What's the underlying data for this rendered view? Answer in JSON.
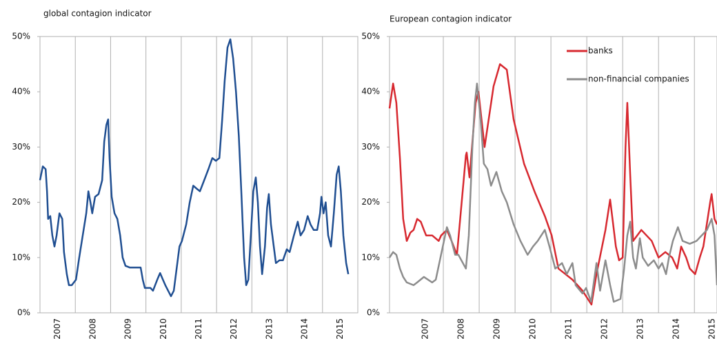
{
  "chart_data": [
    {
      "type": "line",
      "title": "global contagion indicator",
      "xlim": [
        2007,
        2016
      ],
      "xticks": [
        2007,
        2008,
        2009,
        2010,
        2011,
        2012,
        2013,
        2014,
        2015
      ],
      "ylim": [
        0,
        50
      ],
      "yticks": [
        {
          "value": 0,
          "label": "0%"
        },
        {
          "value": 10,
          "label": "10%"
        },
        {
          "value": 20,
          "label": "20%"
        },
        {
          "value": 30,
          "label": "30%"
        },
        {
          "value": 40,
          "label": "40%"
        },
        {
          "value": 50,
          "label": "50%"
        }
      ],
      "grid": true,
      "series": [
        {
          "color": "#1f4e91",
          "x": [
            2007.0,
            2007.08,
            2007.16,
            2007.2,
            2007.23,
            2007.29,
            2007.35,
            2007.41,
            2007.47,
            2007.55,
            2007.63,
            2007.68,
            2007.76,
            2007.82,
            2007.9,
            2008.02,
            2008.11,
            2008.21,
            2008.31,
            2008.37,
            2008.43,
            2008.48,
            2008.56,
            2008.66,
            2008.76,
            2008.82,
            2008.88,
            2008.93,
            2008.97,
            2009.03,
            2009.11,
            2009.19,
            2009.27,
            2009.34,
            2009.42,
            2009.54,
            2009.7,
            2009.85,
            2009.91,
            2009.97,
            2010.13,
            2010.2,
            2010.32,
            2010.4,
            2010.48,
            2010.55,
            2010.63,
            2010.71,
            2010.79,
            2010.87,
            2010.95,
            2011.02,
            2011.14,
            2011.24,
            2011.34,
            2011.43,
            2011.53,
            2011.65,
            2011.77,
            2011.88,
            2011.98,
            2012.08,
            2012.16,
            2012.23,
            2012.31,
            2012.39,
            2012.47,
            2012.55,
            2012.63,
            2012.7,
            2012.78,
            2012.84,
            2012.9,
            2012.98,
            2013.04,
            2013.11,
            2013.17,
            2013.23,
            2013.29,
            2013.37,
            2013.43,
            2013.48,
            2013.54,
            2013.62,
            2013.68,
            2013.78,
            2013.88,
            2013.99,
            2014.07,
            2014.19,
            2014.3,
            2014.38,
            2014.48,
            2014.58,
            2014.66,
            2014.75,
            2014.85,
            2014.93,
            2014.97,
            2015.03,
            2015.09,
            2015.16,
            2015.24,
            2015.32,
            2015.4,
            2015.46,
            2015.52,
            2015.59,
            2015.67,
            2015.73
          ],
          "values": [
            24,
            26.5,
            26,
            22,
            17,
            17.5,
            14,
            12,
            14,
            18,
            17,
            11,
            7,
            5,
            5,
            6,
            10,
            14,
            18,
            22,
            20,
            18,
            21,
            21.5,
            24,
            31,
            34,
            35,
            28,
            21,
            18,
            17,
            14,
            10,
            8.5,
            8.2,
            8.2,
            8.2,
            6,
            4.5,
            4.5,
            4,
            6,
            7.2,
            6,
            5,
            4,
            3,
            4,
            8,
            12,
            13,
            16,
            20,
            23,
            22.5,
            22,
            24,
            26,
            28,
            27.5,
            28,
            35,
            42,
            48,
            49.5,
            46,
            40,
            32,
            22,
            10,
            5,
            6,
            15,
            22,
            24.5,
            20,
            12,
            7,
            12,
            19,
            21.5,
            16,
            12,
            9,
            9.5,
            9.5,
            11.5,
            11,
            14,
            16.5,
            14,
            15,
            17.5,
            16,
            15,
            15,
            18,
            21,
            18,
            20,
            14,
            12,
            18,
            25,
            26.5,
            22,
            14,
            9,
            7
          ]
        }
      ]
    },
    {
      "type": "line",
      "title": "European contagion indicator",
      "xlim": [
        2006.5,
        2015.63
      ],
      "xticks": [
        2007,
        2008,
        2009,
        2010,
        2011,
        2012,
        2013,
        2014,
        2015
      ],
      "ylim": [
        0,
        50
      ],
      "yticks": [
        {
          "value": 0,
          "label": "0%"
        },
        {
          "value": 10,
          "label": "10%"
        },
        {
          "value": 20,
          "label": "20%"
        },
        {
          "value": 30,
          "label": "30%"
        },
        {
          "value": 40,
          "label": "40%"
        },
        {
          "value": 50,
          "label": "50%"
        }
      ],
      "grid": true,
      "legend": "top-right",
      "series": [
        {
          "name": "banks",
          "color": "#d7282f",
          "x": [
            2006.5,
            2006.6,
            2006.69,
            2006.79,
            2006.88,
            2006.98,
            2007.08,
            2007.17,
            2007.27,
            2007.37,
            2007.46,
            2007.52,
            2007.69,
            2007.87,
            2007.94,
            2008.1,
            2008.23,
            2008.38,
            2008.63,
            2008.65,
            2008.73,
            2008.9,
            2008.98,
            2009.15,
            2009.4,
            2009.58,
            2009.77,
            2009.96,
            2010.25,
            2010.54,
            2010.83,
            2011.02,
            2011.21,
            2011.6,
            2011.88,
            2012.13,
            2012.27,
            2012.52,
            2012.65,
            2012.81,
            2012.9,
            2013.0,
            2013.08,
            2013.13,
            2013.21,
            2013.29,
            2013.52,
            2013.81,
            2014.0,
            2014.19,
            2014.38,
            2014.52,
            2014.63,
            2014.77,
            2014.87,
            2015.02,
            2015.15,
            2015.25,
            2015.44,
            2015.48,
            2015.56,
            2015.63
          ],
          "values": [
            37,
            41.5,
            38,
            28,
            17,
            13,
            14.5,
            15,
            17,
            16.5,
            15,
            14,
            14,
            13,
            14,
            15,
            13,
            10.5,
            28.5,
            29,
            24.5,
            38,
            40,
            30,
            41,
            45,
            44,
            35,
            27,
            22,
            17.5,
            14,
            8,
            6,
            4,
            1.5,
            7,
            15,
            20.5,
            12,
            9.5,
            10,
            30,
            38,
            25,
            13,
            15,
            13,
            10,
            11,
            10,
            8,
            12,
            10,
            8,
            7,
            10,
            12,
            20,
            21.5,
            17,
            16
          ]
        },
        {
          "name": "non-financial companies",
          "color": "#8c8c8c",
          "x": [
            2006.5,
            2006.6,
            2006.69,
            2006.79,
            2006.88,
            2006.98,
            2007.17,
            2007.27,
            2007.46,
            2007.69,
            2007.79,
            2008.1,
            2008.19,
            2008.33,
            2008.42,
            2008.63,
            2008.71,
            2008.81,
            2008.88,
            2008.94,
            2009.04,
            2009.13,
            2009.23,
            2009.33,
            2009.48,
            2009.63,
            2009.77,
            2009.96,
            2010.15,
            2010.35,
            2010.5,
            2010.63,
            2010.83,
            2010.96,
            2011.12,
            2011.31,
            2011.44,
            2011.6,
            2011.69,
            2011.88,
            2011.98,
            2012.12,
            2012.27,
            2012.37,
            2012.52,
            2012.65,
            2012.75,
            2012.94,
            2013.04,
            2013.13,
            2013.21,
            2013.29,
            2013.37,
            2013.48,
            2013.56,
            2013.71,
            2013.87,
            2014.0,
            2014.1,
            2014.21,
            2014.29,
            2014.4,
            2014.54,
            2014.67,
            2014.87,
            2015.06,
            2015.35,
            2015.48,
            2015.56,
            2015.63
          ],
          "values": [
            10,
            11,
            10.5,
            8,
            6.5,
            5.5,
            5,
            5.5,
            6.5,
            5.5,
            6,
            15.5,
            14,
            10.5,
            10.5,
            8,
            14,
            30,
            38,
            41.5,
            35,
            27,
            26,
            23,
            25.5,
            22,
            20,
            16,
            13,
            10.5,
            12,
            13,
            15,
            12,
            8,
            9,
            7,
            9,
            5,
            3.5,
            4.5,
            2,
            9,
            4,
            9.5,
            5,
            2,
            2.5,
            8,
            14,
            16.5,
            10,
            8,
            13.5,
            10,
            8.5,
            9.5,
            8,
            9,
            7,
            10,
            13,
            15.5,
            13,
            12.5,
            13,
            15,
            17,
            14,
            5
          ]
        }
      ]
    }
  ]
}
